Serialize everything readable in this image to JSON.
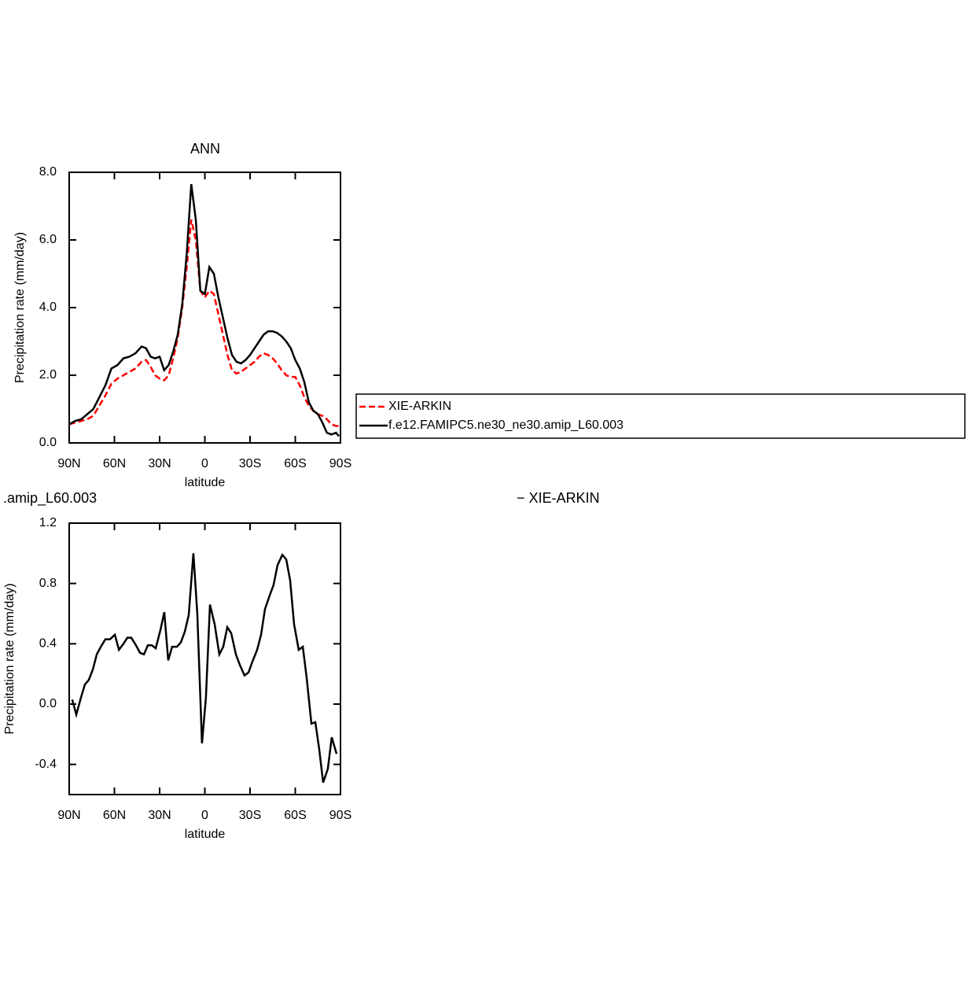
{
  "chart_data": [
    {
      "type": "line",
      "title": "ANN",
      "x_label": "latitude",
      "y_label": "Precipitation rate (mm/day)",
      "xlim": [
        90,
        -90
      ],
      "xticks": [
        {
          "value": 90,
          "label": "90N"
        },
        {
          "value": 60,
          "label": "60N"
        },
        {
          "value": 30,
          "label": "30N"
        },
        0,
        {
          "value": -30,
          "label": "30S"
        },
        {
          "value": -60,
          "label": "60S"
        },
        {
          "value": -90,
          "label": "90S"
        }
      ],
      "ylim": [
        0,
        8
      ],
      "yticks": [
        {
          "value": 0,
          "label": "0.0"
        },
        {
          "value": 2,
          "label": "2.0"
        },
        {
          "value": 4,
          "label": "4.0"
        },
        {
          "value": 6,
          "label": "6.0"
        },
        {
          "value": 8,
          "label": "8.0"
        }
      ],
      "legend": "outside-right",
      "x": [
        90,
        86,
        82,
        78,
        74,
        70,
        66,
        62,
        58,
        54,
        50,
        46,
        42,
        39,
        36,
        33,
        30,
        27,
        24,
        21,
        18,
        15,
        12,
        9,
        6,
        3,
        0,
        -3,
        -6,
        -9,
        -12,
        -15,
        -18,
        -21,
        -24,
        -27,
        -30,
        -33,
        -36,
        -39,
        -42,
        -45,
        -48,
        -51,
        -54,
        -57,
        -60,
        -63,
        -66,
        -69,
        -72,
        -75,
        -78,
        -81,
        -84,
        -87,
        -89
      ],
      "series": [
        {
          "name": "XIE-ARKIN",
          "color": "#ff0000",
          "dashed": true,
          "values": [
            0.55,
            0.6,
            0.65,
            0.7,
            0.8,
            1.1,
            1.4,
            1.75,
            1.9,
            2.0,
            2.1,
            2.2,
            2.4,
            2.45,
            2.25,
            2.0,
            1.9,
            1.85,
            2.0,
            2.5,
            3.1,
            4.0,
            5.2,
            6.6,
            6.0,
            4.5,
            4.3,
            4.5,
            4.4,
            3.8,
            3.2,
            2.6,
            2.15,
            2.05,
            2.1,
            2.2,
            2.3,
            2.4,
            2.55,
            2.65,
            2.6,
            2.5,
            2.35,
            2.15,
            2.0,
            1.95,
            1.95,
            1.7,
            1.35,
            1.1,
            0.95,
            0.85,
            0.8,
            0.7,
            0.55,
            0.5,
            0.5
          ]
        },
        {
          "name": "f.e12.FAMIPC5.ne30_ne30.amip_L60.003",
          "color": "#000000",
          "dashed": false,
          "values": [
            0.55,
            0.65,
            0.7,
            0.85,
            1.0,
            1.35,
            1.7,
            2.2,
            2.3,
            2.5,
            2.55,
            2.65,
            2.85,
            2.8,
            2.55,
            2.5,
            2.55,
            2.15,
            2.3,
            2.7,
            3.2,
            4.1,
            5.6,
            7.65,
            6.6,
            4.5,
            4.4,
            5.2,
            5.0,
            4.3,
            3.7,
            3.1,
            2.6,
            2.4,
            2.35,
            2.45,
            2.6,
            2.8,
            3.0,
            3.2,
            3.3,
            3.3,
            3.25,
            3.15,
            3.0,
            2.8,
            2.45,
            2.2,
            1.8,
            1.2,
            0.95,
            0.85,
            0.6,
            0.3,
            0.25,
            0.3,
            0.2
          ]
        }
      ]
    },
    {
      "type": "line",
      "title": ".amip_L60.003",
      "title_right": "− XIE-ARKIN",
      "x_label": "latitude",
      "y_label": "Precipitation rate (mm/day)",
      "xlim": [
        90,
        -90
      ],
      "xticks": [
        {
          "value": 90,
          "label": "90N"
        },
        {
          "value": 60,
          "label": "60N"
        },
        {
          "value": 30,
          "label": "30N"
        },
        0,
        {
          "value": -30,
          "label": "30S"
        },
        {
          "value": -60,
          "label": "60S"
        },
        {
          "value": -90,
          "label": "90S"
        }
      ],
      "ylim": [
        -0.6,
        1.2
      ],
      "yticks": [
        -0.4,
        {
          "value": 0,
          "label": "0.0"
        },
        0.4,
        0.8,
        1.2
      ],
      "x": [
        88,
        85.3,
        82,
        79.6,
        77,
        74.3,
        71.7,
        69,
        66,
        62.9,
        59.7,
        57,
        54,
        51.4,
        48.8,
        45.7,
        43,
        40.4,
        37.8,
        35.2,
        32.6,
        29.5,
        26.9,
        24.3,
        21.7,
        18.5,
        15.9,
        13.3,
        10.7,
        7.6,
        5,
        1.9,
        -0.7,
        -3.4,
        -6.5,
        -9.6,
        -12.2,
        -14.9,
        -17.5,
        -20.6,
        -23.2,
        -26.3,
        -29,
        -31.5,
        -34.7,
        -37.3,
        -39.9,
        -43,
        -45.6,
        -48.2,
        -51.4,
        -54,
        -56.6,
        -59.2,
        -62.3,
        -65,
        -67.5,
        -70.7,
        -73.3,
        -75.9,
        -78.5,
        -81.6,
        -84.2,
        -87.4
      ],
      "series": [
        {
          "color": "#000000",
          "dashed": false,
          "values": [
            0.03,
            -0.07,
            0.05,
            0.13,
            0.16,
            0.23,
            0.33,
            0.38,
            0.43,
            0.43,
            0.46,
            0.36,
            0.4,
            0.44,
            0.44,
            0.39,
            0.34,
            0.33,
            0.39,
            0.39,
            0.37,
            0.49,
            0.61,
            0.29,
            0.38,
            0.38,
            0.41,
            0.48,
            0.59,
            1.0,
            0.6,
            -0.26,
            0.04,
            0.66,
            0.53,
            0.33,
            0.38,
            0.51,
            0.47,
            0.33,
            0.26,
            0.19,
            0.21,
            0.28,
            0.36,
            0.46,
            0.63,
            0.72,
            0.79,
            0.92,
            0.99,
            0.96,
            0.82,
            0.53,
            0.36,
            0.38,
            0.18,
            -0.13,
            -0.12,
            -0.3,
            -0.52,
            -0.43,
            -0.22,
            -0.33
          ]
        }
      ]
    }
  ]
}
